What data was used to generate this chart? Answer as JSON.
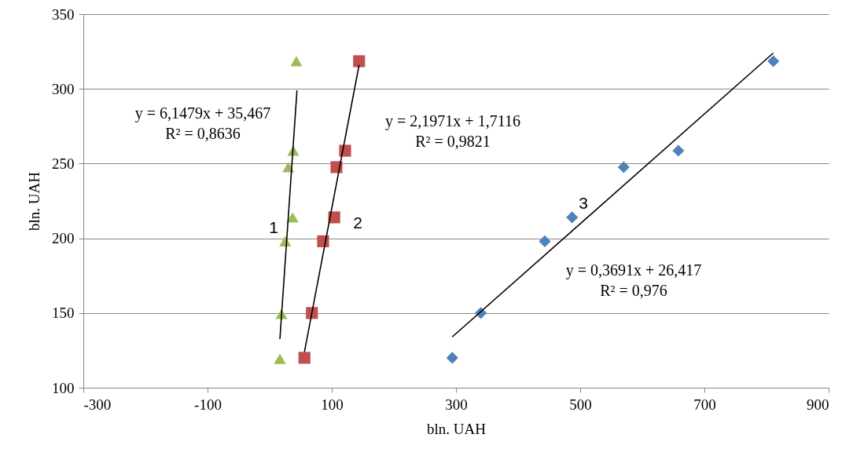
{
  "chart_data": {
    "type": "scatter",
    "xlabel": "bln. UAH",
    "ylabel": "bln. UAH",
    "xlim": [
      -300,
      900
    ],
    "xticks": [
      -300,
      -100,
      100,
      300,
      500,
      700,
      900
    ],
    "ylim": [
      100,
      350
    ],
    "yticks": [
      100,
      150,
      200,
      250,
      300,
      350
    ],
    "grid": "y",
    "series": [
      {
        "color": "#9bbb59",
        "marker": "triangle",
        "x": [
          43,
          38,
          30,
          37,
          25,
          19,
          16.5
        ],
        "values": [
          318.5,
          258.6,
          247.6,
          214,
          198,
          149.4,
          119.4
        ]
      },
      {
        "color": "#c0504d",
        "marker": "square",
        "x": [
          144,
          121.5,
          107.6,
          104,
          86,
          68,
          56
        ],
        "values": [
          318.5,
          258.6,
          247.6,
          214,
          198,
          150,
          120
        ]
      },
      {
        "color": "#4f81bd",
        "marker": "diamond",
        "x": [
          811,
          658,
          570,
          487,
          443,
          340,
          294
        ],
        "values": [
          318.5,
          258.6,
          247.6,
          214,
          198,
          150,
          120
        ]
      },
      {
        "type": "line",
        "color": "#000000",
        "x": [
          16.5,
          44
        ],
        "values": [
          132.6,
          299
        ]
      },
      {
        "type": "line",
        "color": "#000000",
        "x": [
          56,
          144
        ],
        "values": [
          124,
          316
        ]
      },
      {
        "type": "line",
        "color": "#000000",
        "x": [
          294,
          811
        ],
        "values": [
          134,
          324
        ]
      }
    ],
    "annotations": [
      "y = 6,1479x + 35,467\nR² = 0,8636",
      "y = 2,1971x + 1,7116\nR² = 0,9821",
      "y = 0,3691x + 26,417\nR² = 0,976",
      "1",
      "2",
      "3"
    ]
  }
}
